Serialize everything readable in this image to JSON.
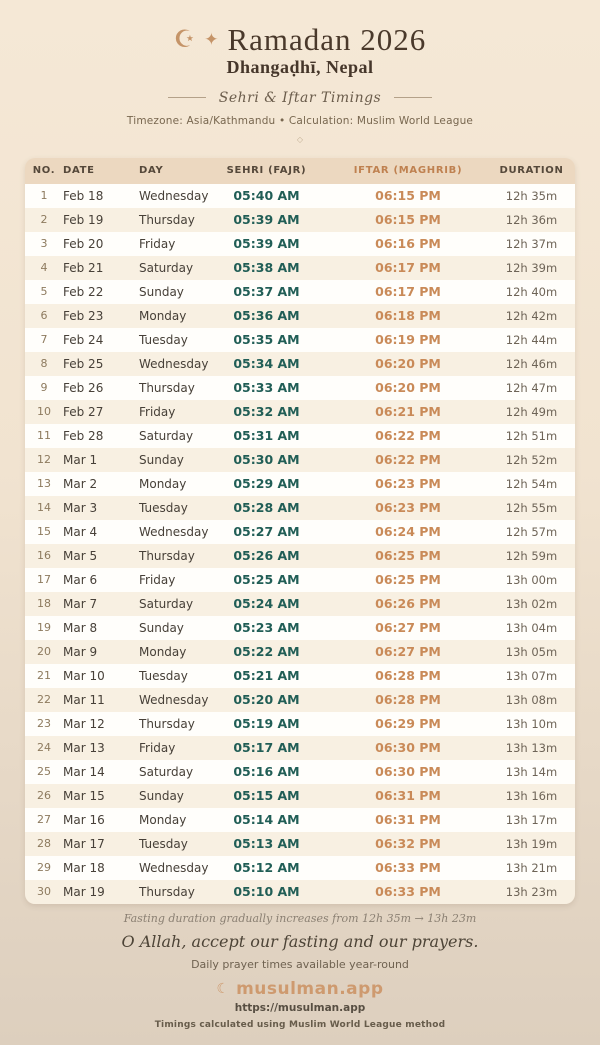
{
  "header": {
    "crescent_icon": "☪",
    "star_icon": "✦",
    "title": "Ramadan 2026",
    "location": "Dhangaḍhī, Nepal",
    "subtitle": "Sehri & Iftar Timings",
    "meta": "Timezone: Asia/Kathmandu • Calculation: Muslim World League",
    "divider_icon": "◇"
  },
  "table": {
    "columns": {
      "no": "NO.",
      "date": "DATE",
      "day": "DAY",
      "sehri": "SEHRI (FAJR)",
      "iftar": "IFTAR (MAGHRIB)",
      "duration": "DURATION"
    },
    "rows": [
      {
        "no": "1",
        "date": "Feb 18",
        "day": "Wednesday",
        "sehri": "05:40 AM",
        "iftar": "06:15 PM",
        "duration": "12h 35m"
      },
      {
        "no": "2",
        "date": "Feb 19",
        "day": "Thursday",
        "sehri": "05:39 AM",
        "iftar": "06:15 PM",
        "duration": "12h 36m"
      },
      {
        "no": "3",
        "date": "Feb 20",
        "day": "Friday",
        "sehri": "05:39 AM",
        "iftar": "06:16 PM",
        "duration": "12h 37m"
      },
      {
        "no": "4",
        "date": "Feb 21",
        "day": "Saturday",
        "sehri": "05:38 AM",
        "iftar": "06:17 PM",
        "duration": "12h 39m"
      },
      {
        "no": "5",
        "date": "Feb 22",
        "day": "Sunday",
        "sehri": "05:37 AM",
        "iftar": "06:17 PM",
        "duration": "12h 40m"
      },
      {
        "no": "6",
        "date": "Feb 23",
        "day": "Monday",
        "sehri": "05:36 AM",
        "iftar": "06:18 PM",
        "duration": "12h 42m"
      },
      {
        "no": "7",
        "date": "Feb 24",
        "day": "Tuesday",
        "sehri": "05:35 AM",
        "iftar": "06:19 PM",
        "duration": "12h 44m"
      },
      {
        "no": "8",
        "date": "Feb 25",
        "day": "Wednesday",
        "sehri": "05:34 AM",
        "iftar": "06:20 PM",
        "duration": "12h 46m"
      },
      {
        "no": "9",
        "date": "Feb 26",
        "day": "Thursday",
        "sehri": "05:33 AM",
        "iftar": "06:20 PM",
        "duration": "12h 47m"
      },
      {
        "no": "10",
        "date": "Feb 27",
        "day": "Friday",
        "sehri": "05:32 AM",
        "iftar": "06:21 PM",
        "duration": "12h 49m"
      },
      {
        "no": "11",
        "date": "Feb 28",
        "day": "Saturday",
        "sehri": "05:31 AM",
        "iftar": "06:22 PM",
        "duration": "12h 51m"
      },
      {
        "no": "12",
        "date": "Mar 1",
        "day": "Sunday",
        "sehri": "05:30 AM",
        "iftar": "06:22 PM",
        "duration": "12h 52m"
      },
      {
        "no": "13",
        "date": "Mar 2",
        "day": "Monday",
        "sehri": "05:29 AM",
        "iftar": "06:23 PM",
        "duration": "12h 54m"
      },
      {
        "no": "14",
        "date": "Mar 3",
        "day": "Tuesday",
        "sehri": "05:28 AM",
        "iftar": "06:23 PM",
        "duration": "12h 55m"
      },
      {
        "no": "15",
        "date": "Mar 4",
        "day": "Wednesday",
        "sehri": "05:27 AM",
        "iftar": "06:24 PM",
        "duration": "12h 57m"
      },
      {
        "no": "16",
        "date": "Mar 5",
        "day": "Thursday",
        "sehri": "05:26 AM",
        "iftar": "06:25 PM",
        "duration": "12h 59m"
      },
      {
        "no": "17",
        "date": "Mar 6",
        "day": "Friday",
        "sehri": "05:25 AM",
        "iftar": "06:25 PM",
        "duration": "13h 00m"
      },
      {
        "no": "18",
        "date": "Mar 7",
        "day": "Saturday",
        "sehri": "05:24 AM",
        "iftar": "06:26 PM",
        "duration": "13h 02m"
      },
      {
        "no": "19",
        "date": "Mar 8",
        "day": "Sunday",
        "sehri": "05:23 AM",
        "iftar": "06:27 PM",
        "duration": "13h 04m"
      },
      {
        "no": "20",
        "date": "Mar 9",
        "day": "Monday",
        "sehri": "05:22 AM",
        "iftar": "06:27 PM",
        "duration": "13h 05m"
      },
      {
        "no": "21",
        "date": "Mar 10",
        "day": "Tuesday",
        "sehri": "05:21 AM",
        "iftar": "06:28 PM",
        "duration": "13h 07m"
      },
      {
        "no": "22",
        "date": "Mar 11",
        "day": "Wednesday",
        "sehri": "05:20 AM",
        "iftar": "06:28 PM",
        "duration": "13h 08m"
      },
      {
        "no": "23",
        "date": "Mar 12",
        "day": "Thursday",
        "sehri": "05:19 AM",
        "iftar": "06:29 PM",
        "duration": "13h 10m"
      },
      {
        "no": "24",
        "date": "Mar 13",
        "day": "Friday",
        "sehri": "05:17 AM",
        "iftar": "06:30 PM",
        "duration": "13h 13m"
      },
      {
        "no": "25",
        "date": "Mar 14",
        "day": "Saturday",
        "sehri": "05:16 AM",
        "iftar": "06:30 PM",
        "duration": "13h 14m"
      },
      {
        "no": "26",
        "date": "Mar 15",
        "day": "Sunday",
        "sehri": "05:15 AM",
        "iftar": "06:31 PM",
        "duration": "13h 16m"
      },
      {
        "no": "27",
        "date": "Mar 16",
        "day": "Monday",
        "sehri": "05:14 AM",
        "iftar": "06:31 PM",
        "duration": "13h 17m"
      },
      {
        "no": "28",
        "date": "Mar 17",
        "day": "Tuesday",
        "sehri": "05:13 AM",
        "iftar": "06:32 PM",
        "duration": "13h 19m"
      },
      {
        "no": "29",
        "date": "Mar 18",
        "day": "Wednesday",
        "sehri": "05:12 AM",
        "iftar": "06:33 PM",
        "duration": "13h 21m"
      },
      {
        "no": "30",
        "date": "Mar 19",
        "day": "Thursday",
        "sehri": "05:10 AM",
        "iftar": "06:33 PM",
        "duration": "13h 23m"
      }
    ]
  },
  "footer": {
    "note": "Fasting duration gradually increases from 12h 35m → 13h 23m",
    "dua": "O Allah, accept our fasting and our prayers.",
    "availability": "Daily prayer times available year-round",
    "brand_icon": "☾",
    "brand": "musulman.app",
    "url": "https://musulman.app",
    "method": "Timings calculated using Muslim World League method"
  },
  "colors": {
    "background_top": "#f5e8d6",
    "background_bottom": "#ddcfbe",
    "table_header_bg": "#ecd8c0",
    "sehri_time": "#215e56",
    "iftar_time": "#c98a58",
    "accent_tan": "#c59468",
    "brand": "#ce9a6f"
  }
}
